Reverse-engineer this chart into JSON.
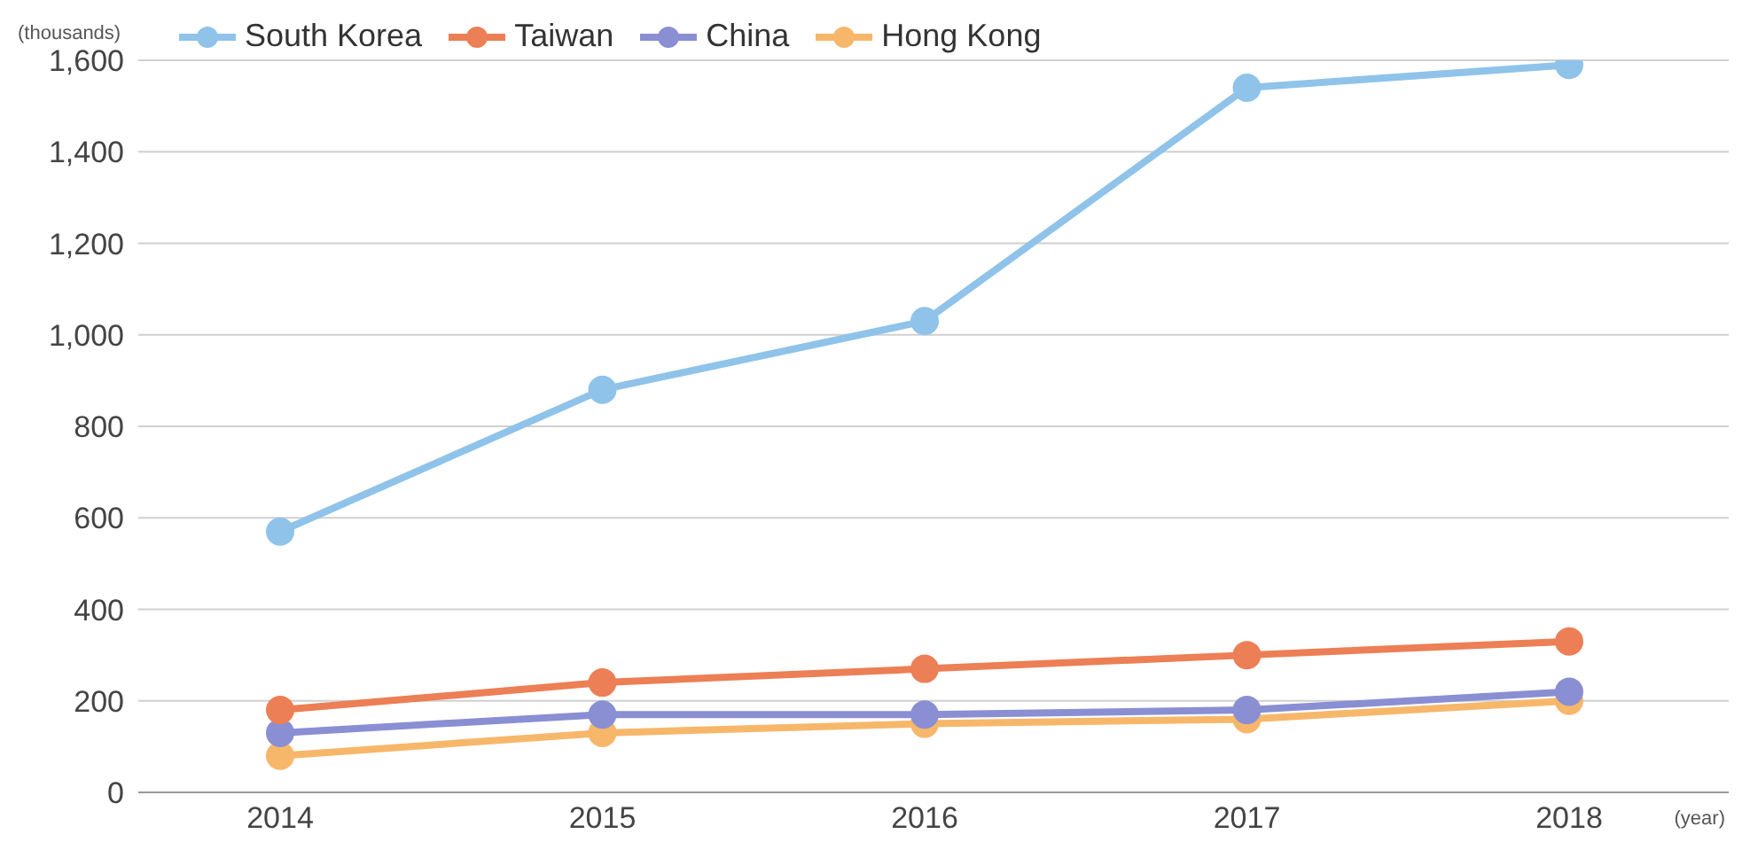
{
  "chart_data": {
    "type": "line",
    "ylabel": "(thousands)",
    "xlabel": "(year)",
    "categories": [
      "2014",
      "2015",
      "2016",
      "2017",
      "2018"
    ],
    "series": [
      {
        "name": "South Korea",
        "color": "#8fc3ea",
        "values": [
          570,
          880,
          1030,
          1540,
          1590
        ]
      },
      {
        "name": "Taiwan",
        "color": "#ec7f55",
        "values": [
          180,
          240,
          270,
          300,
          330
        ]
      },
      {
        "name": "China",
        "color": "#8a8fd3",
        "values": [
          130,
          170,
          170,
          180,
          220
        ]
      },
      {
        "name": "Hong Kong",
        "color": "#f7b76a",
        "values": [
          80,
          130,
          150,
          160,
          200
        ]
      }
    ],
    "ylim": [
      0,
      1600
    ],
    "yticks": [
      0,
      200,
      400,
      600,
      800,
      {
        "value": 1000,
        "label": "1,000"
      },
      {
        "value": 1200,
        "label": "1,200"
      },
      {
        "value": 1400,
        "label": "1,400"
      },
      {
        "value": 1600,
        "label": "1,600"
      }
    ],
    "grid": "y",
    "legend": "top left",
    "marker": "circle",
    "line_style": "solid"
  }
}
